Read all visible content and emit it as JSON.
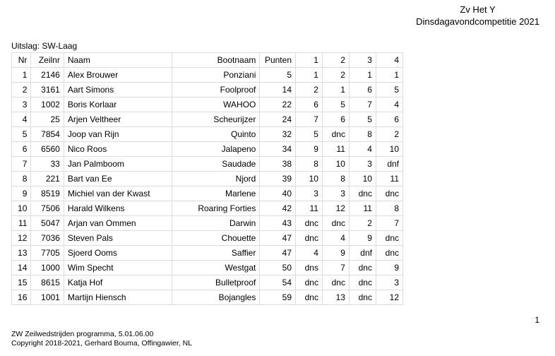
{
  "header": {
    "title": "Zv Het Y",
    "subtitle": "Dinsdagavondcompetitie 2021"
  },
  "section_label": "Uitslag: SW-Laag",
  "columns": {
    "nr": "Nr",
    "zeilnr": "Zeilnr",
    "naam": "Naam",
    "bootnaam": "Bootnaam",
    "punten": "Punten",
    "r1": "1",
    "r2": "2",
    "r3": "3",
    "r4": "4"
  },
  "rows": [
    {
      "nr": "1",
      "zeilnr": "2146",
      "naam": "Alex Brouwer",
      "bootnaam": "Ponziani",
      "punten": "5",
      "r1": "1",
      "r2": "2",
      "r3": "1",
      "r4": "1"
    },
    {
      "nr": "2",
      "zeilnr": "3161",
      "naam": "Aart Simons",
      "bootnaam": "Foolproof",
      "punten": "14",
      "r1": "2",
      "r2": "1",
      "r3": "6",
      "r4": "5"
    },
    {
      "nr": "3",
      "zeilnr": "1002",
      "naam": "Boris Korlaar",
      "bootnaam": "WAHOO",
      "punten": "22",
      "r1": "6",
      "r2": "5",
      "r3": "7",
      "r4": "4"
    },
    {
      "nr": "4",
      "zeilnr": "25",
      "naam": "Arjen Veltheer",
      "bootnaam": "Scheurijzer",
      "punten": "24",
      "r1": "7",
      "r2": "6",
      "r3": "5",
      "r4": "6"
    },
    {
      "nr": "5",
      "zeilnr": "7854",
      "naam": "Joop van Rijn",
      "bootnaam": "Quinto",
      "punten": "32",
      "r1": "5",
      "r2": "dnc",
      "r3": "8",
      "r4": "2"
    },
    {
      "nr": "6",
      "zeilnr": "6560",
      "naam": "Nico Roos",
      "bootnaam": "Jalapeno",
      "punten": "34",
      "r1": "9",
      "r2": "11",
      "r3": "4",
      "r4": "10"
    },
    {
      "nr": "7",
      "zeilnr": "33",
      "naam": "Jan Palmboom",
      "bootnaam": "Saudade",
      "punten": "38",
      "r1": "8",
      "r2": "10",
      "r3": "3",
      "r4": "dnf"
    },
    {
      "nr": "8",
      "zeilnr": "221",
      "naam": "Bart van Ee",
      "bootnaam": "Njord",
      "punten": "39",
      "r1": "10",
      "r2": "8",
      "r3": "10",
      "r4": "11"
    },
    {
      "nr": "9",
      "zeilnr": "8519",
      "naam": "Michiel van der Kwast",
      "bootnaam": "Marlene",
      "punten": "40",
      "r1": "3",
      "r2": "3",
      "r3": "dnc",
      "r4": "dnc"
    },
    {
      "nr": "10",
      "zeilnr": "7506",
      "naam": "Harald Wilkens",
      "bootnaam": "Roaring Forties",
      "punten": "42",
      "r1": "11",
      "r2": "12",
      "r3": "11",
      "r4": "8"
    },
    {
      "nr": "11",
      "zeilnr": "5047",
      "naam": "Arjan van Ommen",
      "bootnaam": "Darwin",
      "punten": "43",
      "r1": "dnc",
      "r2": "dnc",
      "r3": "2",
      "r4": "7"
    },
    {
      "nr": "12",
      "zeilnr": "7036",
      "naam": "Steven Pals",
      "bootnaam": "Chouette",
      "punten": "47",
      "r1": "dnc",
      "r2": "4",
      "r3": "9",
      "r4": "dnc"
    },
    {
      "nr": "13",
      "zeilnr": "7705",
      "naam": "Sjoerd Ooms",
      "bootnaam": "Saffier",
      "punten": "47",
      "r1": "4",
      "r2": "9",
      "r3": "dnf",
      "r4": "dnc"
    },
    {
      "nr": "14",
      "zeilnr": "1000",
      "naam": "Wim Specht",
      "bootnaam": "Westgat",
      "punten": "50",
      "r1": "dns",
      "r2": "7",
      "r3": "dnc",
      "r4": "9"
    },
    {
      "nr": "15",
      "zeilnr": "8615",
      "naam": "Katja Hof",
      "bootnaam": "Bulletproof",
      "punten": "54",
      "r1": "dnc",
      "r2": "dnc",
      "r3": "dnc",
      "r4": "3"
    },
    {
      "nr": "16",
      "zeilnr": "1001",
      "naam": "Martijn Hiensch",
      "bootnaam": "Bojangles",
      "punten": "59",
      "r1": "dnc",
      "r2": "13",
      "r3": "dnc",
      "r4": "12"
    }
  ],
  "page_number": "1",
  "footer": {
    "line1": "ZW Zeilwedstrijden programma, 5.01.06.00",
    "line2": "Copyright 2018-2021, Gerhard Bouma, Offingawier, NL"
  }
}
